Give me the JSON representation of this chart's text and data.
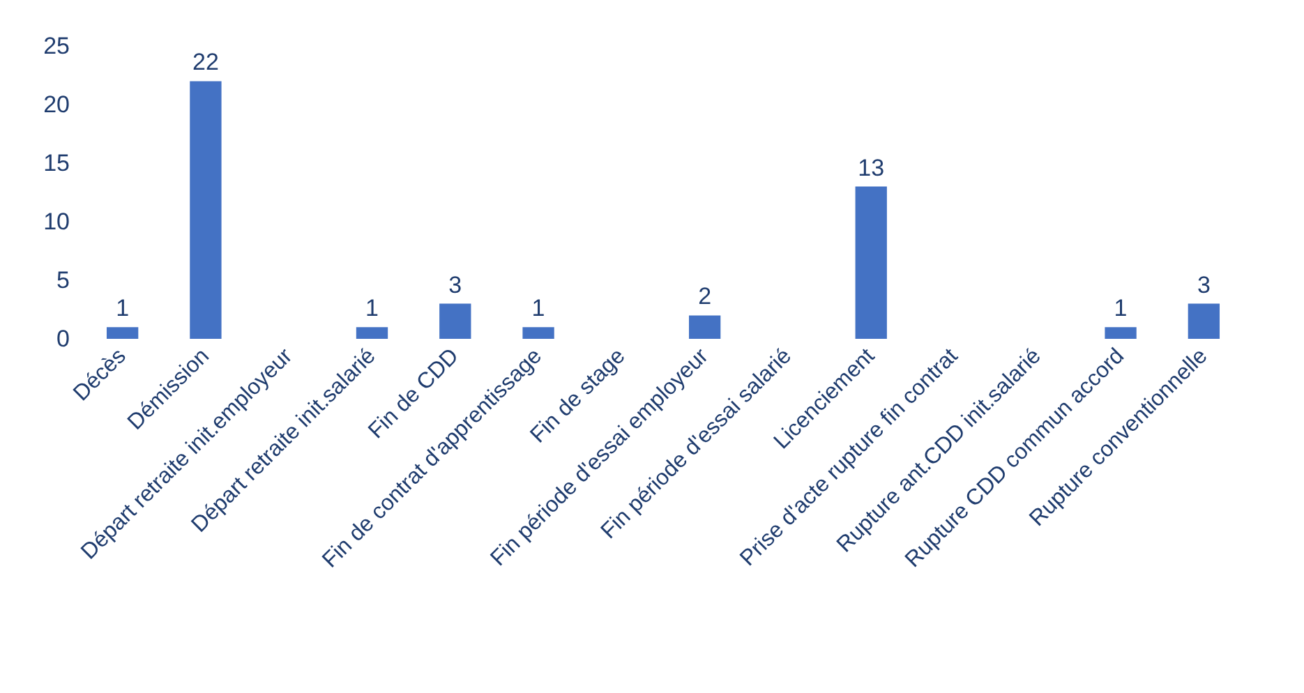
{
  "chart_data": {
    "type": "bar",
    "categories": [
      "Décès",
      "Démission",
      "Départ retraite init.employeur",
      "Départ retraite init.salarié",
      "Fin de CDD",
      "Fin de contrat d'apprentissage",
      "Fin de stage",
      "Fin période d'essai employeur",
      "Fin période d'essai salarié",
      "Licenciement",
      "Prise d'acte rupture fin contrat",
      "Rupture ant.CDD init.salarié",
      "Rupture CDD commun accord",
      "Rupture conventionnelle"
    ],
    "values": [
      1,
      22,
      0,
      1,
      3,
      1,
      0,
      2,
      0,
      13,
      0,
      0,
      1,
      3
    ],
    "value_labels": [
      "1",
      "22",
      null,
      "1",
      "3",
      "1",
      null,
      "2",
      null,
      "13",
      null,
      null,
      "1",
      "3"
    ],
    "color": "#4472c4",
    "ylim": [
      0,
      25
    ],
    "yticks": [
      0,
      5,
      10,
      15,
      20,
      25
    ],
    "grid": false
  }
}
